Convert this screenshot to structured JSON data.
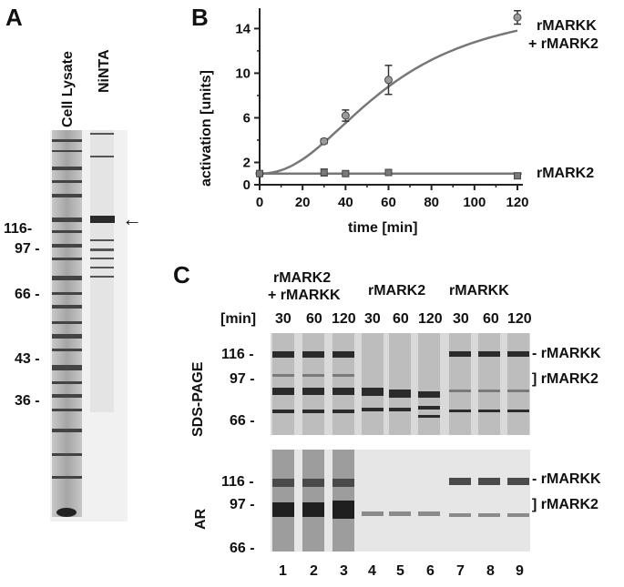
{
  "panels": {
    "a": {
      "letter": "A"
    },
    "b": {
      "letter": "B"
    },
    "c": {
      "letter": "C"
    }
  },
  "panel_a": {
    "lane_labels": [
      "Cell Lysate",
      "NiNTA"
    ],
    "markers": [
      "116-",
      "97 -",
      "66 -",
      "43 -",
      "36 -"
    ],
    "arrow": "←"
  },
  "chart_data": {
    "type": "line",
    "xlabel": "time [min]",
    "ylabel": "activation [units]",
    "xlim": [
      0,
      120
    ],
    "ylim": [
      0,
      15.5
    ],
    "x_ticks": [
      "0",
      "20",
      "40",
      "60",
      "80",
      "100",
      "120"
    ],
    "y_ticks": [
      "0",
      "2",
      "6",
      "10",
      "14"
    ],
    "series": [
      {
        "name": "rMARKK + rMARK2",
        "label_lines": [
          "rMARKK",
          "+ rMARK2"
        ],
        "x": [
          0,
          30,
          40,
          60,
          120
        ],
        "y": [
          1.0,
          3.9,
          6.2,
          9.4,
          15.0
        ],
        "err": [
          0,
          0.2,
          0.5,
          1.3,
          0.6
        ]
      },
      {
        "name": "rMARK2",
        "label_lines": [
          "rMARK2"
        ],
        "x": [
          0,
          30,
          40,
          60,
          120
        ],
        "y": [
          1.0,
          1.1,
          1.0,
          1.1,
          0.8
        ],
        "err": [
          0,
          0.3,
          0.2,
          0.2,
          0.1
        ]
      }
    ],
    "grid": false
  },
  "panel_c": {
    "groups": [
      {
        "label_lines": [
          "rMARK2",
          "+ rMARKK"
        ]
      },
      {
        "label_lines": [
          "rMARK2"
        ]
      },
      {
        "label_lines": [
          "rMARKK"
        ]
      }
    ],
    "min_label": "[min]",
    "time_labels": [
      "30",
      "60",
      "120",
      "30",
      "60",
      "120",
      "30",
      "60",
      "120"
    ],
    "row_labels": [
      "SDS-PAGE",
      "AR"
    ],
    "markers_top": [
      "116 -",
      "97 -",
      "66 -"
    ],
    "markers_bottom": [
      "116 -",
      "97 -",
      "66 -"
    ],
    "band_labels_top": [
      "- rMARKK",
      "] rMARK2"
    ],
    "band_labels_bottom": [
      "- rMARKK",
      "] rMARK2"
    ],
    "lane_numbers": [
      "1",
      "2",
      "3",
      "4",
      "5",
      "6",
      "7",
      "8",
      "9"
    ]
  }
}
